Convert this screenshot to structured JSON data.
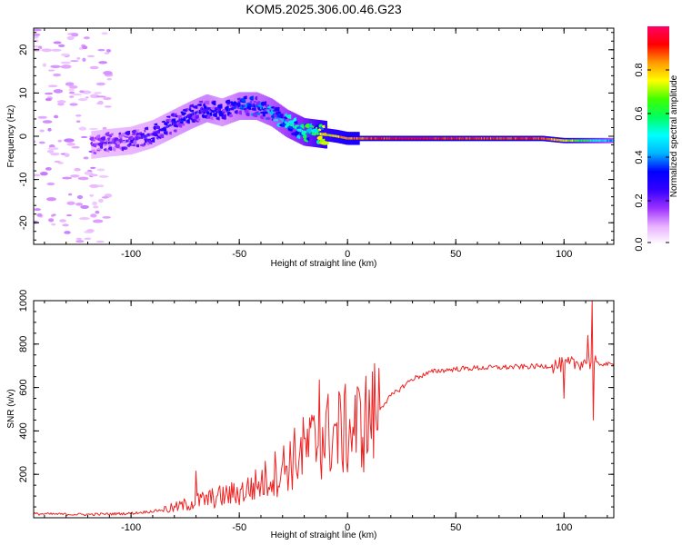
{
  "title": "KOM5.2025.306.00.46.G23",
  "chart_data": [
    {
      "type": "heatmap",
      "xlabel": "Height of straight line (km)",
      "ylabel": "Frequency (Hz)",
      "xlim": [
        -145,
        123
      ],
      "ylim": [
        -25,
        25
      ],
      "xticks": [
        -100,
        -50,
        0,
        50,
        100
      ],
      "yticks": [
        -20,
        -10,
        0,
        10,
        20
      ],
      "colorbar": {
        "label": "Normalized spectral amplitude",
        "ticks": [
          "0.0",
          "0.2",
          "0.4",
          "0.6",
          "0.8"
        ],
        "range": [
          0,
          1
        ],
        "colormap": [
          "#ffffff",
          "#e8b0ff",
          "#9b30ff",
          "#3300ff",
          "#0000ff",
          "#00b4ff",
          "#00ffff",
          "#00ff60",
          "#40ff00",
          "#ffff00",
          "#ff9900",
          "#ff0000",
          "#ff0066"
        ]
      },
      "ridge": {
        "x": [
          -118,
          -110,
          -100,
          -90,
          -80,
          -72,
          -65,
          -58,
          -50,
          -42,
          -35,
          -28,
          -20,
          -12,
          -5,
          0,
          10,
          30,
          60,
          90,
          100,
          110,
          123
        ],
        "freq": [
          -2,
          -1.5,
          -1,
          0.5,
          3,
          5,
          6.5,
          5.5,
          7,
          7,
          5.5,
          3,
          1,
          0.5,
          0,
          -0.5,
          -0.5,
          -0.5,
          -0.5,
          -0.5,
          -1.0,
          -1.0,
          -1.0
        ],
        "amplitude": [
          0.18,
          0.2,
          0.22,
          0.24,
          0.28,
          0.3,
          0.32,
          0.28,
          0.34,
          0.36,
          0.4,
          0.45,
          0.55,
          0.7,
          0.78,
          0.82,
          0.88,
          0.95,
          0.9,
          0.88,
          0.75,
          0.6,
          0.4
        ]
      },
      "scatter_region": {
        "x_range": [
          -145,
          -110
        ],
        "freq_range": [
          -25,
          25
        ],
        "amplitude": 0.05
      }
    },
    {
      "type": "line",
      "xlabel": "Height of straight line (km)",
      "ylabel": "SNR (v/v)",
      "xlim": [
        -145,
        123
      ],
      "ylim": [
        0,
        1000
      ],
      "xticks": [
        -100,
        -50,
        0,
        50,
        100
      ],
      "yticks": [
        200,
        400,
        600,
        800,
        1000
      ],
      "line_color": "#ee2222",
      "envelope": {
        "x": [
          -145,
          -120,
          -100,
          -90,
          -80,
          -70,
          -60,
          -50,
          -40,
          -30,
          -20,
          -10,
          0,
          10,
          20,
          30,
          40,
          50,
          60,
          80,
          95,
          100,
          105,
          110,
          115,
          123
        ],
        "snr": [
          18,
          15,
          20,
          30,
          45,
          75,
          95,
          115,
          160,
          230,
          310,
          380,
          400,
          450,
          560,
          640,
          675,
          685,
          690,
          695,
          700,
          705,
          710,
          720,
          710,
          705
        ]
      },
      "spikes": [
        {
          "x": -70,
          "snr": 215
        },
        {
          "x": -13,
          "snr": 635
        },
        {
          "x": 100,
          "snr": 550
        },
        {
          "x": 111,
          "snr": 840
        },
        {
          "x": 113,
          "snr": 1000
        },
        {
          "x": 113.5,
          "snr": 450
        }
      ]
    }
  ]
}
